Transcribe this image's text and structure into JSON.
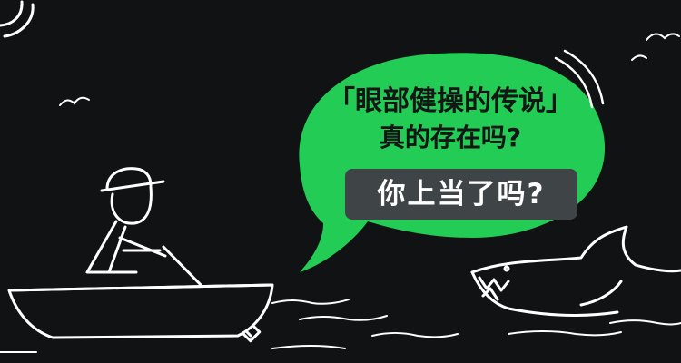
{
  "bubble": {
    "line1": "「眼部健操的传说」",
    "line2": "真的存在吗?"
  },
  "tag": {
    "label": "你上当了吗?"
  },
  "colors": {
    "background": "#111214",
    "bubble": "#22cc55",
    "tag": "#3f4447",
    "line_art": "#ffffff"
  }
}
